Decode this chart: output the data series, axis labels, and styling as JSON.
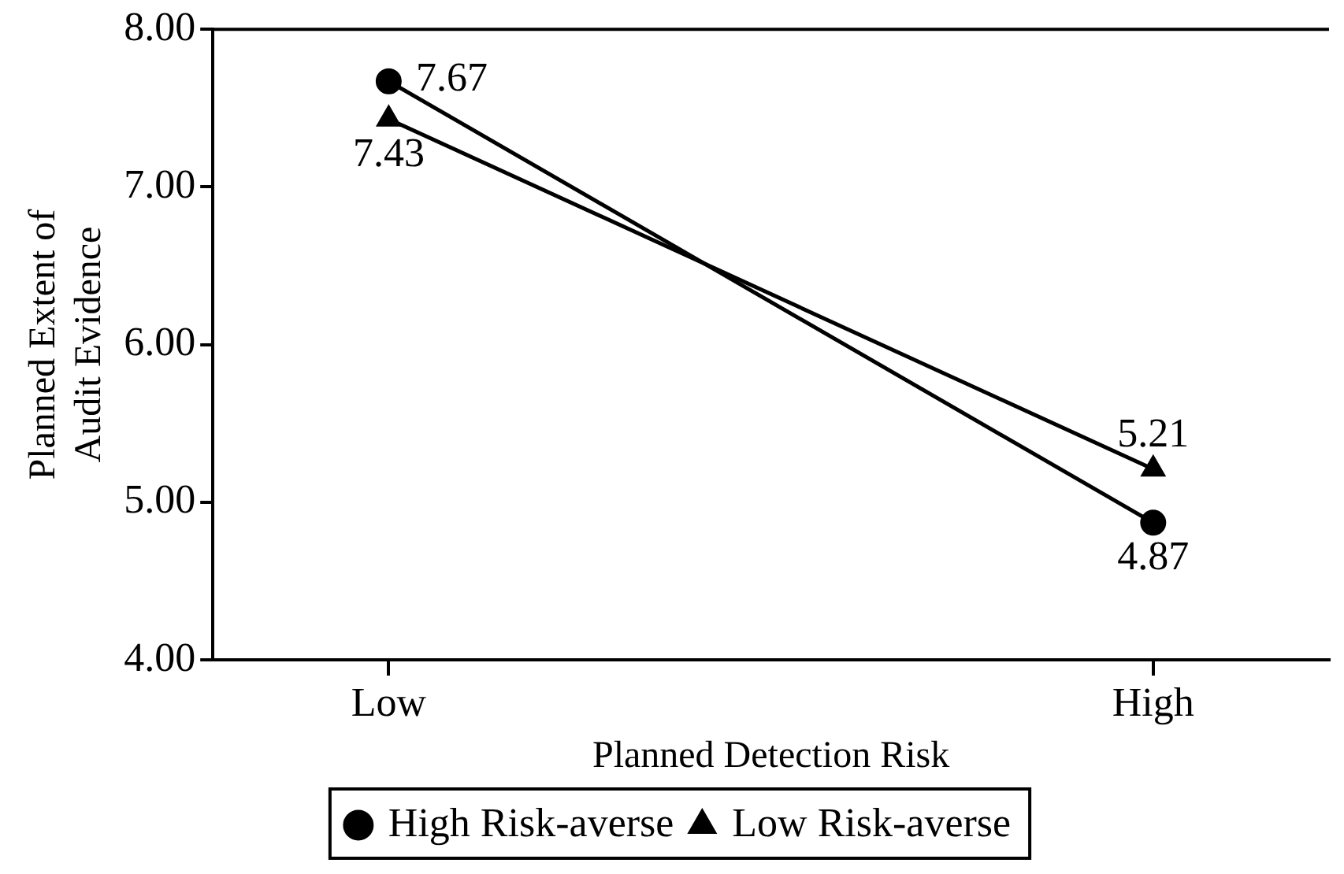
{
  "chart_data": {
    "type": "line",
    "xlabel": "Planned Detection Risk",
    "ylabel": "Planned Extent of Audit Evidence",
    "categories": [
      "Low",
      "High"
    ],
    "series": [
      {
        "name": "High Risk-averse",
        "color": "#000000",
        "marker": "circle",
        "values": [
          7.67,
          4.87
        ]
      },
      {
        "name": "Low Risk-averse",
        "color": "#000000",
        "marker": "triangle",
        "values": [
          7.43,
          5.21
        ]
      }
    ],
    "ylim": [
      4,
      8
    ],
    "yticks": [
      {
        "value": 4,
        "label": "4.00"
      },
      {
        "value": 5,
        "label": "5.00"
      },
      {
        "value": 6,
        "label": "6.00"
      },
      {
        "value": 7,
        "label": "7.00"
      },
      {
        "value": 8,
        "label": "8.00"
      }
    ],
    "grid": false,
    "legend": "bottom",
    "data_labels": true
  }
}
